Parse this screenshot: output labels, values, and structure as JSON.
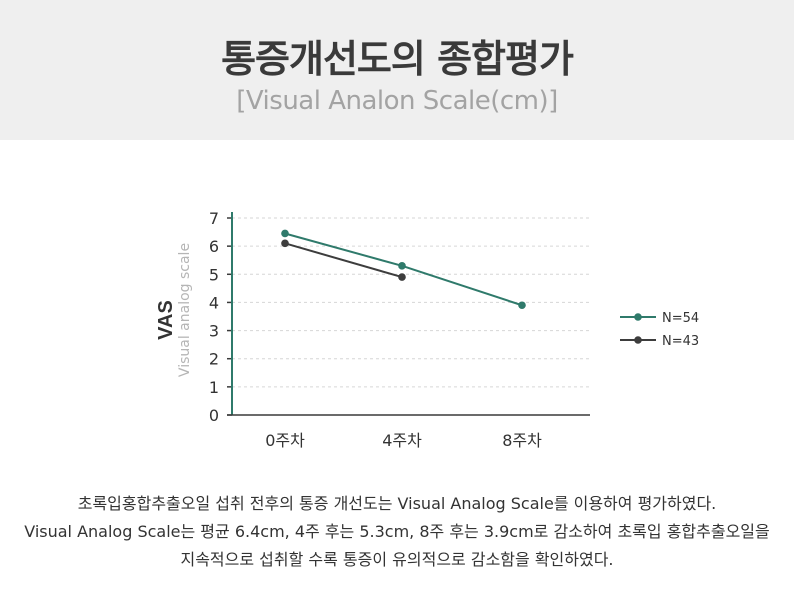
{
  "header": {
    "title": "통증개선도의 종합평가",
    "subtitle": "[Visual Analon Scale(cm)]"
  },
  "chart_data": {
    "type": "line",
    "ylabel": "VAS",
    "ylabel_sub": "Visual analog scale",
    "categories": [
      "0주차",
      "4주차",
      "8주차"
    ],
    "yticks": [
      "0",
      "1",
      "2",
      "3",
      "4",
      "5",
      "6",
      "7"
    ],
    "ylim": [
      0,
      7
    ],
    "grid": true,
    "legend_position": "right",
    "series": [
      {
        "name": "N=54",
        "values": [
          6.45,
          5.3,
          3.9
        ],
        "color": "#2f7a6b"
      },
      {
        "name": "N=43",
        "values": [
          6.1,
          4.9,
          null
        ],
        "color": "#3d3d3d"
      }
    ]
  },
  "description": {
    "line1": "초록입홍합추출오일 섭취 전후의 통증 개선도는 Visual Analog Scale를 이용하여 평가하였다.",
    "line2": "Visual Analog Scale는 평균 6.4cm, 4주 후는 5.3cm, 8주 후는 3.9cm로 감소하여 초록입 홍합추출오일을",
    "line3": "지속적으로 섭취할 수록 통증이 유의적으로 감소함을 확인하였다."
  }
}
